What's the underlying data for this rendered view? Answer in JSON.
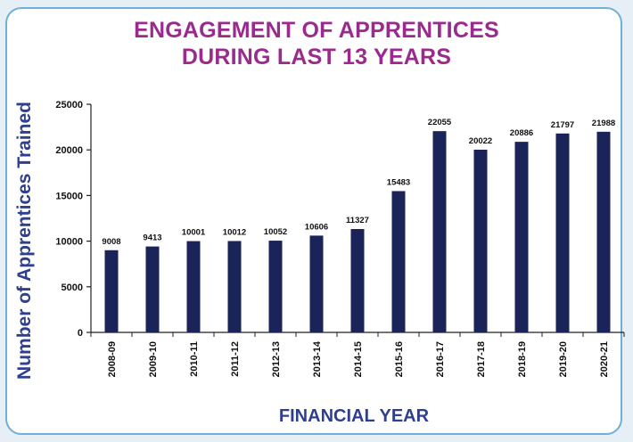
{
  "chart_data": {
    "type": "bar",
    "title": "ENGAGEMENT OF APPRENTICES",
    "subtitle": "DURING LAST 13 YEARS",
    "xlabel": "FINANCIAL YEAR",
    "ylabel": "Number of Apprentices Trained",
    "ylim": [
      0,
      25000
    ],
    "yticks": [
      "0",
      "5000",
      "10000",
      "15000",
      "20000",
      "25000"
    ],
    "grid": false,
    "categories": [
      "2008-09",
      "2009-10",
      "2010-11",
      "2011-12",
      "2012-13",
      "2013-14",
      "2014-15",
      "2015-16",
      "2016-17",
      "2017-18",
      "2018-19",
      "2019-20",
      "2020-21"
    ],
    "values": [
      9008,
      9413,
      10001,
      10012,
      10052,
      10606,
      11327,
      15483,
      22055,
      20022,
      20886,
      21797,
      21988
    ],
    "bar_color": "#1b2459"
  }
}
